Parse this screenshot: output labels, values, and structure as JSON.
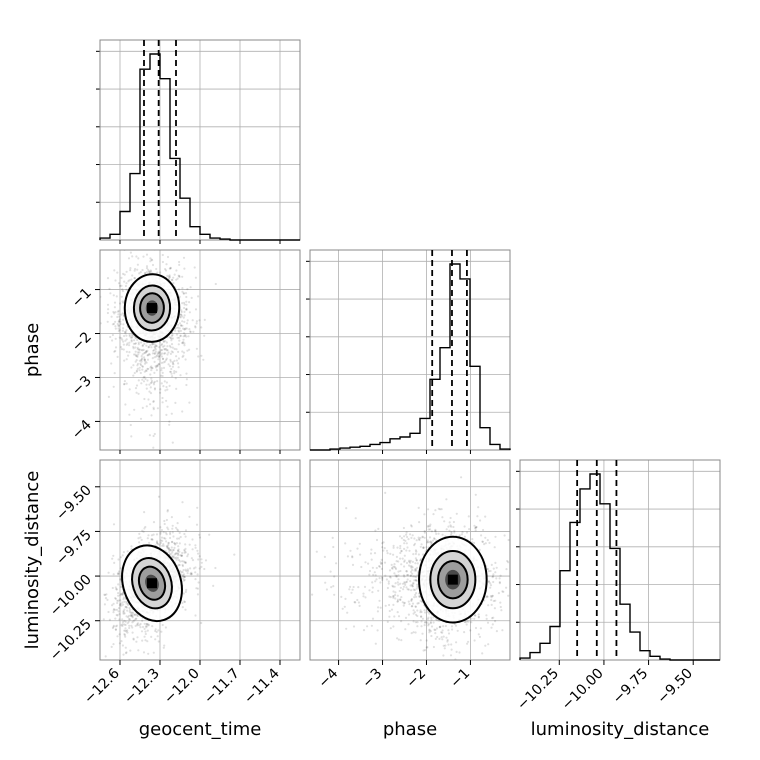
{
  "chart_data": {
    "type": "corner",
    "parameters": [
      "geocent_time",
      "phase",
      "luminosity_distance"
    ],
    "axis_labels": {
      "geocent_time": "geocent_time",
      "phase": "phase",
      "luminosity_distance": "luminosity_distance"
    },
    "ranges": {
      "geocent_time": [
        -12.75,
        -11.25
      ],
      "phase": [
        -4.65,
        -0.1
      ],
      "luminosity_distance": [
        -10.47,
        -9.35
      ]
    },
    "ticks": {
      "geocent_time": [
        -12.6,
        -12.3,
        -12.0,
        -11.7,
        -11.4
      ],
      "phase": [
        -4,
        -3,
        -2,
        -1
      ],
      "luminosity_distance": [
        -10.25,
        -10.0,
        -9.75,
        -9.5
      ]
    },
    "tick_labels": {
      "geocent_time": [
        "−12.6",
        "−12.3",
        "−12.0",
        "−11.7",
        "−11.4"
      ],
      "phase": [
        "−4",
        "−3",
        "−2",
        "−1"
      ],
      "luminosity_distance": [
        "−10.25",
        "−10.00",
        "−9.75",
        "−9.50"
      ]
    },
    "quantiles": {
      "geocent_time": [
        -12.42,
        -12.31,
        -12.18
      ],
      "phase": [
        -1.87,
        -1.42,
        -1.08
      ],
      "luminosity_distance": [
        -10.15,
        -10.04,
        -9.93
      ]
    },
    "histograms": {
      "geocent_time": {
        "edges_start": -12.75,
        "bin_width": 0.075,
        "counts": [
          1,
          3,
          15,
          35,
          90,
          98,
          85,
          43,
          22,
          7,
          3,
          1,
          0.5,
          0,
          0,
          0,
          0,
          0,
          0,
          0
        ]
      },
      "phase": {
        "edges_start": -4.65,
        "bin_width": 0.2275,
        "counts": [
          0,
          0,
          0.5,
          1,
          1.5,
          2,
          3,
          4,
          6,
          7,
          9,
          17,
          38,
          55,
          100,
          92,
          45,
          12,
          3,
          0.5
        ]
      },
      "luminosity_distance": {
        "edges_start": -10.47,
        "bin_width": 0.056,
        "counts": [
          1,
          4,
          9,
          18,
          48,
          74,
          92,
          100,
          84,
          60,
          30,
          15,
          5,
          2,
          0.5,
          0,
          0,
          0,
          0,
          0
        ]
      }
    },
    "contours_2d": [
      {
        "x": "geocent_time",
        "y": "phase",
        "center": [
          -12.36,
          -1.42
        ],
        "sigma": [
          0.085,
          0.32
        ],
        "correlation": -0.05
      },
      {
        "x": "geocent_time",
        "y": "luminosity_distance",
        "center": [
          -12.36,
          -10.04
        ],
        "sigma": [
          0.09,
          0.09
        ],
        "correlation": 0.45
      },
      {
        "x": "phase",
        "y": "luminosity_distance",
        "center": [
          -1.4,
          -10.02
        ],
        "sigma": [
          0.32,
          0.1
        ],
        "correlation": 0.0
      }
    ],
    "grid": true
  }
}
